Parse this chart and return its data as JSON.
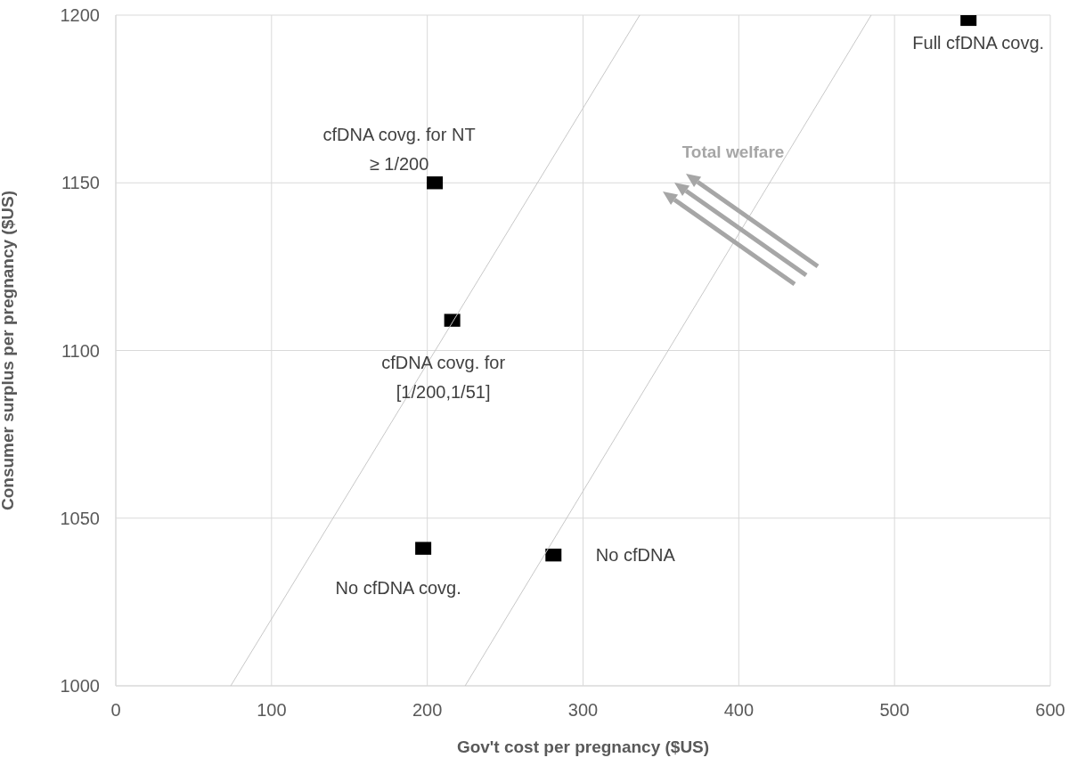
{
  "chart_data": {
    "type": "scatter",
    "xlabel": "Gov't cost per pregnancy ($US)",
    "ylabel": "Consumer surplus per pregnancy ($US)",
    "xlim": [
      0,
      600
    ],
    "xticks": [
      0,
      100,
      200,
      300,
      400,
      500,
      600
    ],
    "ylim": [
      1000,
      1200
    ],
    "yticks": [
      1000,
      1050,
      1100,
      1150,
      1200
    ],
    "grid": true,
    "legend": false,
    "series": [
      {
        "marker": "square",
        "color": "#000000",
        "x": [
          547.5,
          204.8,
          216,
          197.4,
          281
        ],
        "values": [
          1198.7,
          1150,
          1109,
          1041,
          1039
        ]
      },
      {
        "type": "line",
        "marker": "none",
        "color": "#c8c8c8",
        "x": [
          73.8,
          336.4
        ],
        "values": [
          1000,
          1200
        ]
      },
      {
        "type": "line",
        "marker": "none",
        "color": "#c8c8c8",
        "x": [
          224.3,
          485
        ],
        "values": [
          1000,
          1200
        ]
      }
    ],
    "annotations": [
      {
        "text": "Full cfDNA covg.",
        "x": 547.5,
        "y": 1198.7
      },
      {
        "text": "cfDNA covg. for NT\n≥ 1/200",
        "x": 204.8,
        "y": 1150
      },
      {
        "text": "cfDNA covg. for\n[1/200,1/51]",
        "x": 216,
        "y": 1109
      },
      {
        "text": "No cfDNA covg.",
        "x": 197.4,
        "y": 1041
      },
      {
        "text": "No cfDNA",
        "x": 281,
        "y": 1039
      },
      "Total welfare"
    ]
  }
}
